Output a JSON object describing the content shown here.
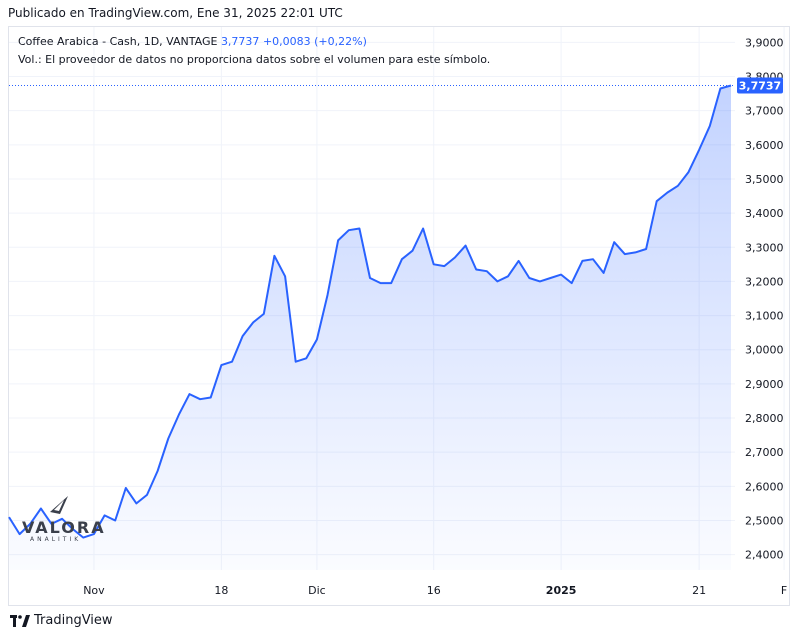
{
  "header": {
    "published": "Publicado en TradingView.com, Ene 31, 2025 22:01 UTC"
  },
  "legend": {
    "symbol": "Coffee Arabica - Cash, 1D, VANTAGE",
    "last": "3,7737",
    "change": "+0,0083 (+0,22%)",
    "volume_note": "Vol.: El proveedor de datos no proporciona datos sobre el volumen para este símbolo."
  },
  "watermark": {
    "name": "VALORA",
    "sub": "ANALITIK"
  },
  "footer": {
    "brand": "TradingView"
  },
  "colors": {
    "line": "#2962ff",
    "fill": "#2962ff",
    "grid": "#f0f3fa",
    "text": "#131722"
  },
  "chart_data": {
    "type": "area",
    "y_ticks": [
      "2,4000",
      "2,5000",
      "2,6000",
      "2,7000",
      "2,8000",
      "2,9000",
      "3,0000",
      "3,1000",
      "3,2000",
      "3,3000",
      "3,4000",
      "3,5000",
      "3,6000",
      "3,7000",
      "3,8000",
      "3,9000"
    ],
    "ylim": [
      2.355,
      3.945
    ],
    "x_ticks": [
      {
        "label": "Nov",
        "index": 8
      },
      {
        "label": "18",
        "index": 20
      },
      {
        "label": "Dic",
        "index": 29
      },
      {
        "label": "16",
        "index": 40
      },
      {
        "label": "2025",
        "index": 52
      },
      {
        "label": "21",
        "index": 65
      },
      {
        "label": "F",
        "index": 73
      }
    ],
    "last_price_label": "3,7737",
    "last_value": 3.7737,
    "values": [
      2.51,
      2.46,
      2.49,
      2.535,
      2.49,
      2.505,
      2.475,
      2.45,
      2.46,
      2.515,
      2.5,
      2.595,
      2.55,
      2.575,
      2.645,
      2.74,
      2.81,
      2.87,
      2.855,
      2.86,
      2.955,
      2.965,
      3.04,
      3.08,
      3.105,
      3.275,
      3.215,
      2.965,
      2.975,
      3.03,
      3.16,
      3.32,
      3.35,
      3.355,
      3.21,
      3.195,
      3.195,
      3.265,
      3.29,
      3.355,
      3.25,
      3.245,
      3.27,
      3.305,
      3.235,
      3.23,
      3.2,
      3.215,
      3.26,
      3.21,
      3.2,
      3.21,
      3.22,
      3.195,
      3.26,
      3.265,
      3.225,
      3.315,
      3.28,
      3.285,
      3.295,
      3.435,
      3.46,
      3.48,
      3.52,
      3.585,
      3.655,
      3.765,
      3.7737
    ]
  }
}
